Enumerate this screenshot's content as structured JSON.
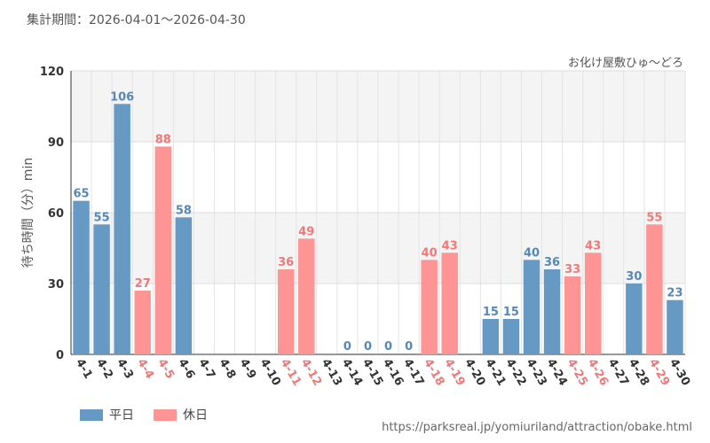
{
  "header": {
    "period": "集計期間：2026-04-01～2026-04-30",
    "attraction": "お化け屋敷ひゅ～どろ"
  },
  "footer": {
    "url": "https://parksreal.jp/yomiuriland/attraction/obake.html"
  },
  "legend": {
    "weekday_label": "平日",
    "holiday_label": "休日"
  },
  "colors": {
    "weekday": "#6699c4",
    "holiday": "#ff9494",
    "weekday_text": "#5588b8",
    "holiday_text": "#f07878",
    "tick_text": "#333333"
  },
  "chart_data": {
    "type": "bar",
    "ylabel": "待ち時間（分）min",
    "ylim": [
      0,
      120
    ],
    "yticks": [
      0,
      30,
      60,
      90,
      120
    ],
    "grid": true,
    "legend_position": "bottom-left",
    "categories": [
      "4-1",
      "4-2",
      "4-3",
      "4-4",
      "4-5",
      "4-6",
      "4-7",
      "4-8",
      "4-9",
      "4-10",
      "4-11",
      "4-12",
      "4-13",
      "4-14",
      "4-15",
      "4-16",
      "4-17",
      "4-18",
      "4-19",
      "4-20",
      "4-21",
      "4-22",
      "4-23",
      "4-24",
      "4-25",
      "4-26",
      "4-27",
      "4-28",
      "4-29",
      "4-30"
    ],
    "values": [
      65,
      55,
      106,
      27,
      88,
      58,
      null,
      null,
      null,
      null,
      36,
      49,
      null,
      0,
      0,
      0,
      0,
      40,
      43,
      null,
      15,
      15,
      40,
      36,
      33,
      43,
      null,
      30,
      55,
      23
    ],
    "day_type": [
      "weekday",
      "weekday",
      "weekday",
      "holiday",
      "holiday",
      "weekday",
      "weekday",
      "weekday",
      "weekday",
      "weekday",
      "holiday",
      "holiday",
      "weekday",
      "weekday",
      "weekday",
      "weekday",
      "weekday",
      "holiday",
      "holiday",
      "weekday",
      "weekday",
      "weekday",
      "weekday",
      "weekday",
      "holiday",
      "holiday",
      "weekday",
      "weekday",
      "holiday",
      "weekday"
    ]
  }
}
